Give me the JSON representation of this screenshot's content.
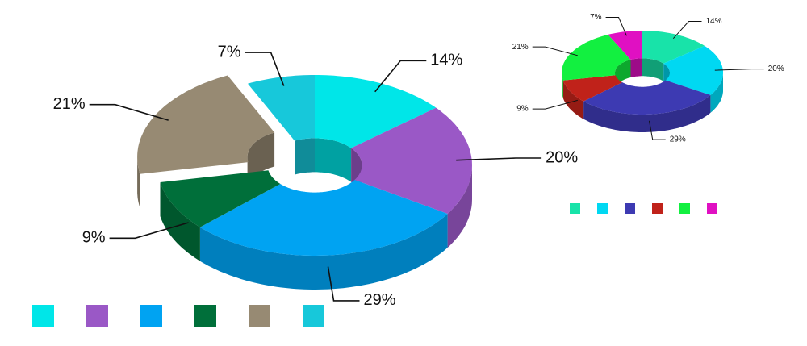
{
  "chart_data": [
    {
      "type": "donut3d",
      "values": [
        14,
        20,
        29,
        9,
        21,
        7
      ],
      "value_labels": [
        "14%",
        "20%",
        "29%",
        "9%",
        "21%",
        "7%"
      ],
      "colors": [
        "#00e6e8",
        "#9a58c6",
        "#00a3f2",
        "#006f3a",
        "#978a73",
        "#17c8da"
      ],
      "explode": [
        false,
        false,
        false,
        false,
        true,
        false
      ]
    },
    {
      "type": "donut3d",
      "values": [
        14,
        20,
        29,
        9,
        21,
        7
      ],
      "value_labels": [
        "14%",
        "20%",
        "29%",
        "9%",
        "21%",
        "7%"
      ],
      "colors": [
        "#18e3a9",
        "#00d8f2",
        "#3d3ab2",
        "#c0221a",
        "#12f040",
        "#e010c2"
      ],
      "explode": [
        false,
        false,
        false,
        false,
        false,
        false
      ]
    }
  ]
}
